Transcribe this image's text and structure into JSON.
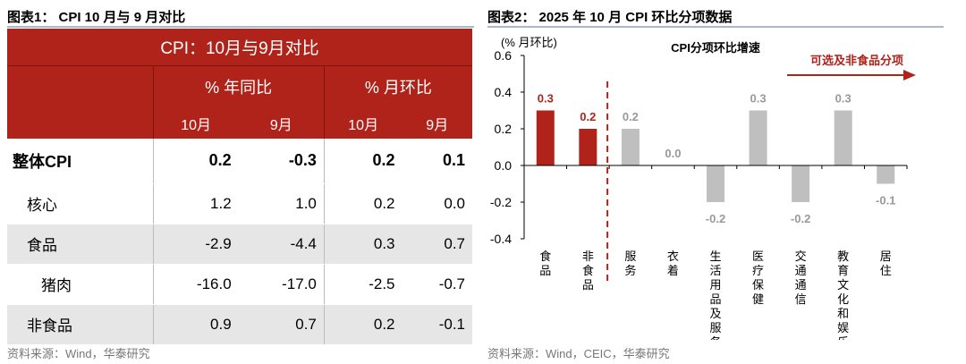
{
  "left": {
    "title": "图表1： CPI 10 月与 9 月对比",
    "source": "资料来源：Wind，华泰研究",
    "table": {
      "title": "CPI：10月与9月对比",
      "groups": [
        "% 年同比",
        "% 月环比"
      ],
      "subcols": [
        "10月",
        "9月",
        "10月",
        "9月"
      ],
      "rows": [
        {
          "label": "整体CPI",
          "values": [
            "0.2",
            "-0.3",
            "0.2",
            "0.1"
          ]
        },
        {
          "label": "核心",
          "values": [
            "1.2",
            "1.0",
            "0.2",
            "0.0"
          ]
        },
        {
          "label": "食品",
          "values": [
            "-2.9",
            "-4.4",
            "0.3",
            "0.7"
          ]
        },
        {
          "label": "猪肉",
          "values": [
            "-16.0",
            "-17.0",
            "-2.5",
            "-0.7"
          ]
        },
        {
          "label": "非食品",
          "values": [
            "0.9",
            "0.7",
            "0.2",
            "-0.1"
          ]
        }
      ]
    }
  },
  "right": {
    "title": "图表2： 2025 年 10 月 CPI 环比分项数据",
    "source": "资料来源：Wind，CEIC，华泰研究"
  },
  "colors": {
    "red": "#b0231a",
    "gray": "#bfbfbf"
  },
  "chart_data": {
    "type": "bar",
    "title": "CPI分项环比增速",
    "ylabel": "(% 月环比)",
    "ylim": [
      -0.4,
      0.6
    ],
    "yticks": [
      -0.4,
      -0.2,
      0.0,
      0.2,
      0.4,
      0.6
    ],
    "categories": [
      "食品",
      "非食品",
      "服务",
      "衣着",
      "生活用品及服务",
      "医疗保健",
      "交通通信",
      "教育文化和娱乐",
      "居住"
    ],
    "values": [
      0.3,
      0.2,
      0.2,
      0.0,
      -0.2,
      0.3,
      -0.2,
      0.3,
      -0.1
    ],
    "labels": [
      "0.3",
      "0.2",
      "0.2",
      "0.0",
      "-0.2",
      "0.3",
      "-0.2",
      "0.3",
      "-0.1"
    ],
    "highlight": [
      true,
      true,
      false,
      false,
      false,
      false,
      false,
      false,
      false
    ],
    "annotation": "可选及非食品分项"
  }
}
